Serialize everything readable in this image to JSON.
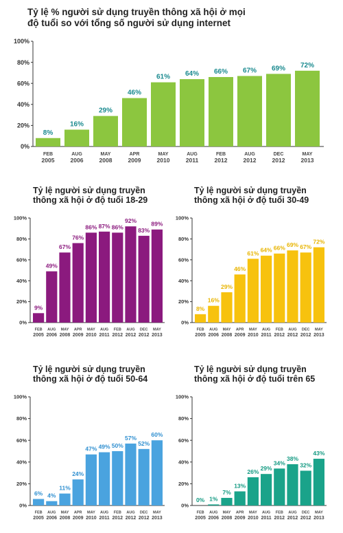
{
  "chart_data": [
    {
      "type": "bar",
      "title": "Tỷ lệ % người sử dụng truyền thông xã hội ở mọi\nđộ tuổi so với tổng số người sử dụng internet",
      "categories": [
        "FEB 2005",
        "AUG 2006",
        "MAY 2008",
        "APR 2009",
        "MAY 2010",
        "AUG 2011",
        "FEB 2012",
        "AUG 2012",
        "DEC 2012",
        "MAY 2013"
      ],
      "values": [
        8,
        16,
        29,
        46,
        61,
        64,
        66,
        67,
        69,
        72
      ],
      "data_labels": [
        "8%",
        "16%",
        "29%",
        "46%",
        "61%",
        "64%",
        "66%",
        "67%",
        "69%",
        "72%"
      ],
      "ytick_labels": [
        "0%",
        "20%",
        "40%",
        "60%",
        "80%",
        "100%"
      ],
      "ylim": [
        0,
        100
      ],
      "bar_color": "#8cc63f",
      "label_color": "#1a8a8f",
      "grid": false
    },
    {
      "type": "bar",
      "title": "Tỷ lệ người sử dụng truyền\nthông xã hội ở độ tuổi 18-29",
      "categories": [
        "FEB 2005",
        "AUG 2006",
        "MAY 2008",
        "APR 2009",
        "MAY 2010",
        "AUG 2011",
        "FEB 2012",
        "AUG 2012",
        "DEC 2012",
        "MAY 2013"
      ],
      "values": [
        9,
        49,
        67,
        76,
        86,
        87,
        86,
        92,
        83,
        89
      ],
      "data_labels": [
        "9%",
        "49%",
        "67%",
        "76%",
        "86%",
        "87%",
        "86%",
        "92%",
        "83%",
        "89%"
      ],
      "ytick_labels": [
        "0%",
        "20%",
        "40%",
        "60%",
        "80%",
        "100%"
      ],
      "ylim": [
        0,
        100
      ],
      "bar_color": "#8b1a7e",
      "label_color": "#8b1a7e",
      "grid": false
    },
    {
      "type": "bar",
      "title": "Tỷ lệ người sử dụng truyền\nthông xã hội ở độ tuổi 30-49",
      "categories": [
        "FEB 2005",
        "AUG 2006",
        "MAY 2008",
        "APR 2009",
        "MAY 2010",
        "AUG 2011",
        "FEB 2012",
        "AUG 2012",
        "DEC 2012",
        "MAY 2013"
      ],
      "values": [
        8,
        16,
        29,
        46,
        61,
        64,
        66,
        69,
        67,
        72
      ],
      "data_labels": [
        "8%",
        "16%",
        "29%",
        "46%",
        "61%",
        "64%",
        "66%",
        "69%",
        "67%",
        "72%"
      ],
      "ytick_labels": [
        "0%",
        "20%",
        "40%",
        "60%",
        "80%",
        "100%"
      ],
      "ylim": [
        0,
        100
      ],
      "bar_color": "#f7c20e",
      "label_color": "#e8b400",
      "grid": false
    },
    {
      "type": "bar",
      "title": "Tỷ lệ người sử dụng truyền\nthông xã hội ở độ tuổi 50-64",
      "categories": [
        "FEB 2005",
        "AUG 2006",
        "MAY 2008",
        "APR 2009",
        "MAY 2010",
        "AUG 2011",
        "FEB 2012",
        "AUG 2012",
        "DEC 2012",
        "MAY 2013"
      ],
      "values": [
        6,
        4,
        11,
        24,
        47,
        49,
        50,
        57,
        52,
        60
      ],
      "data_labels": [
        "6%",
        "4%",
        "11%",
        "24%",
        "47%",
        "49%",
        "50%",
        "57%",
        "52%",
        "60%"
      ],
      "ytick_labels": [
        "0%",
        "20%",
        "40%",
        "60%",
        "80%",
        "100%"
      ],
      "ylim": [
        0,
        100
      ],
      "bar_color": "#4aa3df",
      "label_color": "#2f8fd0",
      "grid": false
    },
    {
      "type": "bar",
      "title": "Tỷ lệ người sử dụng truyền\nthông xã hội ở độ tuổi trên 65",
      "categories": [
        "FEB 2005",
        "AUG 2006",
        "MAY 2008",
        "APR 2009",
        "MAY 2010",
        "AUG 2011",
        "FEB 2012",
        "AUG 2012",
        "DEC 2012",
        "MAY 2013"
      ],
      "values": [
        0,
        1,
        7,
        13,
        26,
        29,
        34,
        38,
        32,
        43
      ],
      "data_labels": [
        "0%",
        "1%",
        "7%",
        "13%",
        "26%",
        "29%",
        "34%",
        "38%",
        "32%",
        "43%"
      ],
      "ytick_labels": [
        "0%",
        "20%",
        "40%",
        "60%",
        "80%",
        "100%"
      ],
      "ylim": [
        0,
        100
      ],
      "bar_color": "#1aa38a",
      "label_color": "#139a82",
      "grid": false
    }
  ]
}
